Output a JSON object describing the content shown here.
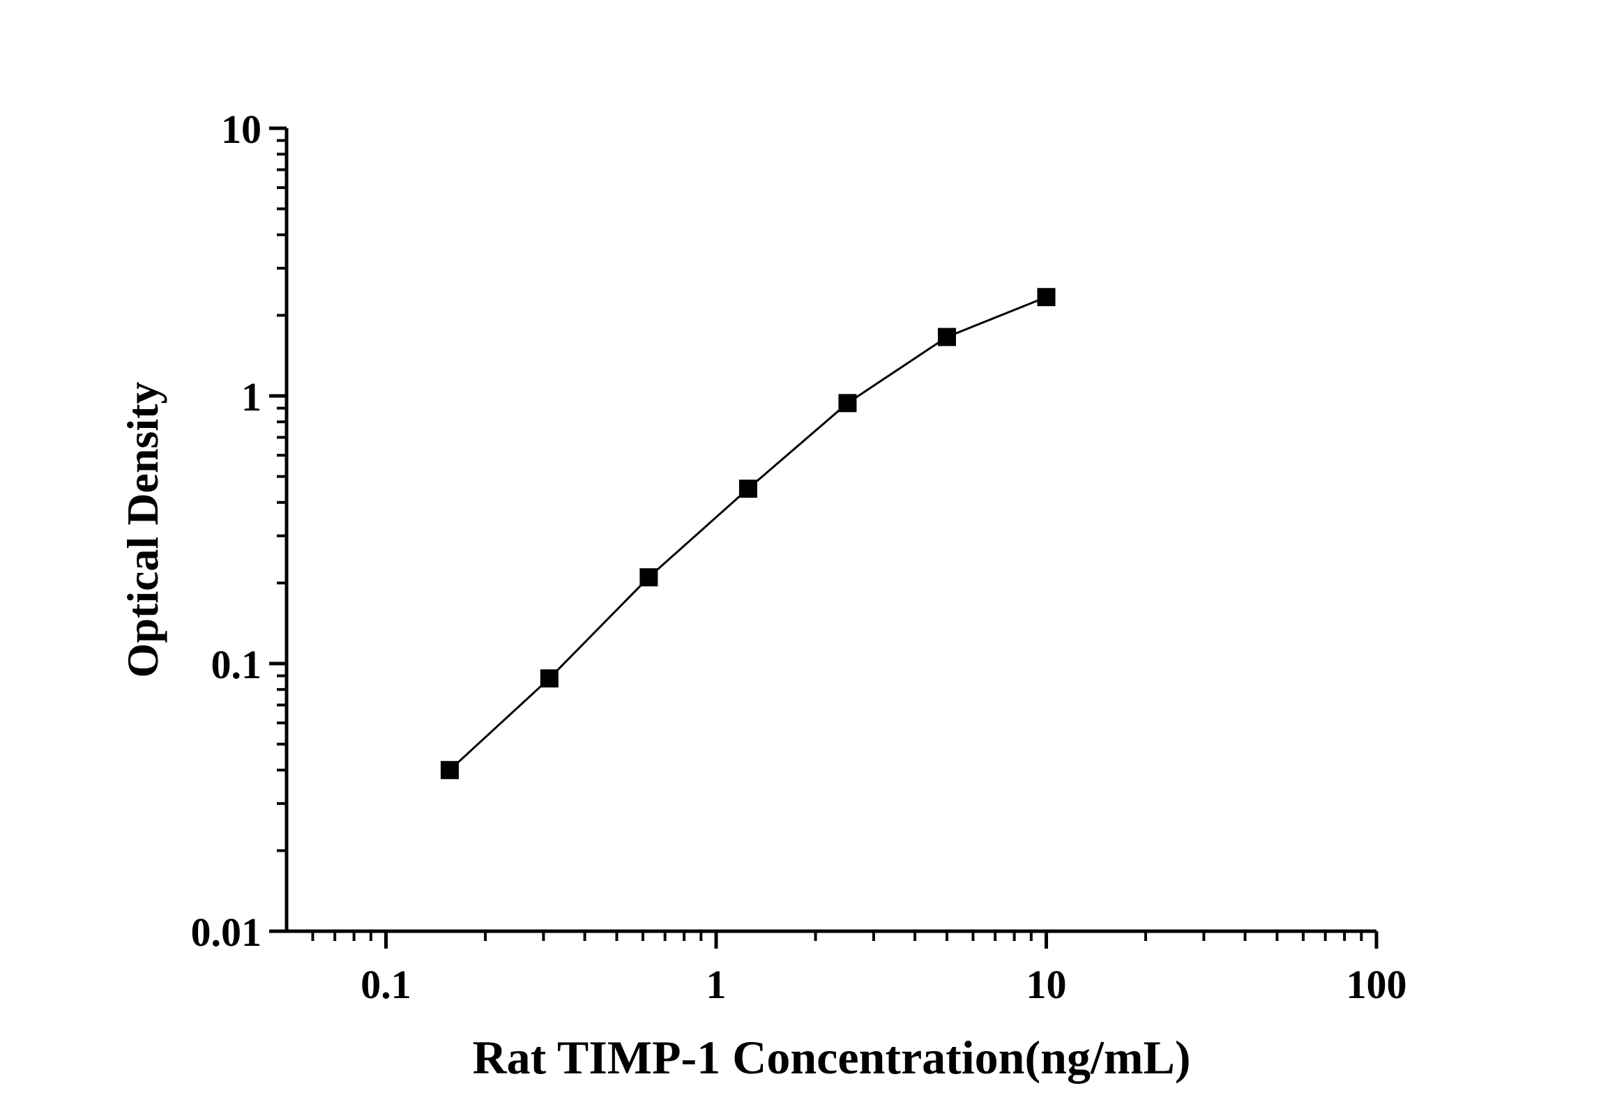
{
  "figure": {
    "background_color": "#ffffff",
    "ink_color": "#000000"
  },
  "chart_data": {
    "type": "scatter",
    "subtype": "log-log standard curve with connected filled square markers",
    "title": "",
    "xlabel": "Rat TIMP-1 Concentration(ng/mL)",
    "ylabel": "Optical Density",
    "x_scale": "log",
    "y_scale": "log",
    "xlim": [
      0.05,
      100
    ],
    "ylim": [
      0.01,
      10
    ],
    "x_major_ticks": {
      "values": [
        0.1,
        1,
        10,
        100
      ],
      "labels": [
        "0.1",
        "1",
        "10",
        "100"
      ]
    },
    "y_major_ticks": {
      "values": [
        10,
        1,
        0.1,
        0.01
      ],
      "labels": [
        "10",
        "1",
        "0.1",
        "0.01"
      ]
    },
    "minor_ticks": "log decades (2-9 subdivisions), drawn outside axes",
    "grid": false,
    "legend": "none",
    "series": [
      {
        "name": "Rat TIMP-1 standard curve",
        "marker": "filled-square",
        "line": "solid",
        "color": "#000000",
        "x": [
          0.156,
          0.3125,
          0.625,
          1.25,
          2.5,
          5,
          10
        ],
        "y": [
          0.04,
          0.088,
          0.21,
          0.45,
          0.94,
          1.66,
          2.34
        ]
      }
    ]
  }
}
